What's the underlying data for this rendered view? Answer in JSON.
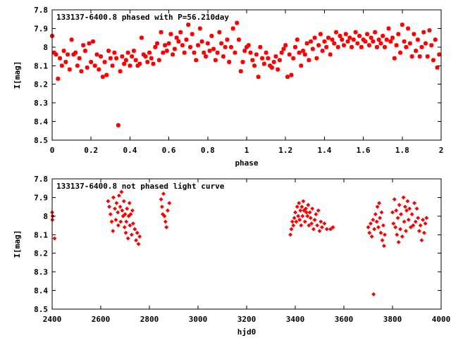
{
  "chart_data": [
    {
      "type": "scatter",
      "title": "133137-6400.8 phased with P=56.210day",
      "xlabel": "phase",
      "ylabel": "I[mag]",
      "xlim": [
        0,
        2
      ],
      "ylim": [
        8.5,
        7.8
      ],
      "y_inverted": true,
      "grid": false,
      "marker": "asterisk",
      "color": "#ff0000",
      "xticks": [
        "0",
        "0.2",
        "0.4",
        "0.6",
        "0.8",
        "1",
        "1.2",
        "1.4",
        "1.6",
        "1.8",
        "2"
      ],
      "yticks": [
        "7.8",
        "7.9",
        "8",
        "8.1",
        "8.2",
        "8.3",
        "8.4",
        "8.5"
      ],
      "points": [
        [
          0.0,
          7.94
        ],
        [
          0.01,
          8.03
        ],
        [
          0.02,
          8.04
        ],
        [
          0.03,
          8.17
        ],
        [
          0.04,
          8.06
        ],
        [
          0.05,
          8.1
        ],
        [
          0.06,
          8.02
        ],
        [
          0.07,
          8.08
        ],
        [
          0.08,
          8.04
        ],
        [
          0.09,
          8.12
        ],
        [
          0.1,
          7.96
        ],
        [
          0.11,
          8.04
        ],
        [
          0.12,
          8.03
        ],
        [
          0.13,
          8.1
        ],
        [
          0.14,
          8.06
        ],
        [
          0.15,
          8.13
        ],
        [
          0.16,
          7.99
        ],
        [
          0.17,
          8.02
        ],
        [
          0.18,
          8.11
        ],
        [
          0.19,
          7.98
        ],
        [
          0.2,
          8.08
        ],
        [
          0.21,
          7.97
        ],
        [
          0.22,
          8.1
        ],
        [
          0.23,
          8.04
        ],
        [
          0.24,
          8.12
        ],
        [
          0.25,
          8.05
        ],
        [
          0.26,
          8.16
        ],
        [
          0.27,
          8.08
        ],
        [
          0.28,
          8.15
        ],
        [
          0.29,
          8.02
        ],
        [
          0.3,
          8.06
        ],
        [
          0.31,
          8.1
        ],
        [
          0.32,
          8.03
        ],
        [
          0.33,
          8.06
        ],
        [
          0.34,
          8.42
        ],
        [
          0.35,
          8.13
        ],
        [
          0.36,
          8.05
        ],
        [
          0.37,
          8.09
        ],
        [
          0.38,
          8.07
        ],
        [
          0.39,
          8.03
        ],
        [
          0.4,
          8.1
        ],
        [
          0.41,
          8.05
        ],
        [
          0.42,
          8.02
        ],
        [
          0.43,
          8.07
        ],
        [
          0.44,
          8.1
        ],
        [
          0.45,
          8.09
        ],
        [
          0.46,
          7.95
        ],
        [
          0.47,
          8.04
        ],
        [
          0.48,
          8.05
        ],
        [
          0.49,
          8.08
        ],
        [
          0.5,
          8.03
        ],
        [
          0.51,
          8.06
        ],
        [
          0.52,
          8.09
        ],
        [
          0.53,
          8.0
        ],
        [
          0.54,
          7.98
        ],
        [
          0.55,
          8.07
        ],
        [
          0.56,
          7.92
        ],
        [
          0.57,
          8.03
        ],
        [
          0.58,
          7.99
        ],
        [
          0.59,
          8.02
        ],
        [
          0.6,
          7.98
        ],
        [
          0.61,
          7.93
        ],
        [
          0.62,
          8.04
        ],
        [
          0.63,
          8.01
        ],
        [
          0.64,
          7.95
        ],
        [
          0.65,
          7.97
        ],
        [
          0.66,
          7.92
        ],
        [
          0.67,
          7.99
        ],
        [
          0.68,
          8.03
        ],
        [
          0.69,
          7.96
        ],
        [
          0.7,
          7.88
        ],
        [
          0.71,
          8.0
        ],
        [
          0.72,
          7.93
        ],
        [
          0.73,
          8.03
        ],
        [
          0.74,
          8.07
        ],
        [
          0.75,
          7.99
        ],
        [
          0.76,
          7.9
        ],
        [
          0.77,
          7.97
        ],
        [
          0.78,
          8.03
        ],
        [
          0.79,
          8.05
        ],
        [
          0.8,
          7.98
        ],
        [
          0.81,
          8.02
        ],
        [
          0.82,
          7.94
        ],
        [
          0.83,
          8.01
        ],
        [
          0.84,
          8.07
        ],
        [
          0.85,
          8.03
        ],
        [
          0.86,
          7.92
        ],
        [
          0.87,
          7.98
        ],
        [
          0.88,
          8.05
        ],
        [
          0.89,
          8.0
        ],
        [
          0.9,
          7.96
        ],
        [
          0.91,
          8.08
        ],
        [
          0.92,
          8.0
        ],
        [
          0.93,
          7.9
        ],
        [
          0.94,
          8.03
        ],
        [
          0.95,
          7.87
        ],
        [
          0.96,
          7.96
        ],
        [
          0.97,
          8.13
        ],
        [
          0.98,
          8.08
        ],
        [
          0.99,
          8.02
        ],
        [
          1.0,
          8.0
        ],
        [
          1.01,
          7.99
        ],
        [
          1.02,
          8.03
        ],
        [
          1.03,
          8.07
        ],
        [
          1.04,
          8.1
        ],
        [
          1.05,
          8.04
        ],
        [
          1.06,
          8.16
        ],
        [
          1.07,
          8.0
        ],
        [
          1.08,
          8.06
        ],
        [
          1.09,
          8.09
        ],
        [
          1.1,
          8.03
        ],
        [
          1.11,
          8.06
        ],
        [
          1.12,
          8.1
        ],
        [
          1.13,
          8.11
        ],
        [
          1.14,
          8.08
        ],
        [
          1.15,
          8.05
        ],
        [
          1.16,
          8.12
        ],
        [
          1.17,
          8.07
        ],
        [
          1.18,
          8.03
        ],
        [
          1.19,
          8.01
        ],
        [
          1.2,
          7.99
        ],
        [
          1.21,
          8.16
        ],
        [
          1.22,
          8.04
        ],
        [
          1.23,
          8.15
        ],
        [
          1.24,
          8.06
        ],
        [
          1.25,
          8.0
        ],
        [
          1.26,
          7.96
        ],
        [
          1.27,
          8.03
        ],
        [
          1.28,
          8.1
        ],
        [
          1.29,
          8.02
        ],
        [
          1.3,
          8.04
        ],
        [
          1.31,
          7.98
        ],
        [
          1.32,
          8.07
        ],
        [
          1.33,
          7.97
        ],
        [
          1.34,
          8.01
        ],
        [
          1.35,
          7.95
        ],
        [
          1.36,
          8.06
        ],
        [
          1.37,
          7.99
        ],
        [
          1.38,
          7.93
        ],
        [
          1.39,
          8.02
        ],
        [
          1.4,
          7.97
        ],
        [
          1.41,
          8.0
        ],
        [
          1.42,
          7.95
        ],
        [
          1.43,
          8.04
        ],
        [
          1.44,
          7.96
        ],
        [
          1.45,
          7.98
        ],
        [
          1.46,
          7.92
        ],
        [
          1.47,
          8.0
        ],
        [
          1.48,
          7.94
        ],
        [
          1.49,
          7.96
        ],
        [
          1.5,
          7.99
        ],
        [
          1.51,
          7.93
        ],
        [
          1.52,
          7.97
        ],
        [
          1.53,
          7.95
        ],
        [
          1.54,
          8.0
        ],
        [
          1.55,
          7.96
        ],
        [
          1.56,
          7.92
        ],
        [
          1.57,
          7.98
        ],
        [
          1.58,
          7.94
        ],
        [
          1.59,
          8.0
        ],
        [
          1.6,
          7.96
        ],
        [
          1.61,
          7.97
        ],
        [
          1.62,
          7.93
        ],
        [
          1.63,
          7.99
        ],
        [
          1.64,
          7.95
        ],
        [
          1.65,
          7.97
        ],
        [
          1.66,
          7.92
        ],
        [
          1.67,
          8.0
        ],
        [
          1.68,
          7.96
        ],
        [
          1.69,
          7.98
        ],
        [
          1.7,
          7.94
        ],
        [
          1.71,
          8.0
        ],
        [
          1.72,
          7.96
        ],
        [
          1.73,
          7.9
        ],
        [
          1.74,
          7.97
        ],
        [
          1.75,
          7.95
        ],
        [
          1.76,
          8.06
        ],
        [
          1.77,
          7.99
        ],
        [
          1.78,
          7.93
        ],
        [
          1.79,
          8.03
        ],
        [
          1.8,
          7.88
        ],
        [
          1.81,
          7.97
        ],
        [
          1.82,
          8.0
        ],
        [
          1.83,
          7.9
        ],
        [
          1.84,
          7.98
        ],
        [
          1.85,
          8.05
        ],
        [
          1.86,
          7.93
        ],
        [
          1.87,
          8.02
        ],
        [
          1.88,
          7.96
        ],
        [
          1.89,
          8.05
        ],
        [
          1.9,
          8.0
        ],
        [
          1.91,
          7.92
        ],
        [
          1.92,
          7.98
        ],
        [
          1.93,
          8.05
        ],
        [
          1.94,
          7.91
        ],
        [
          1.95,
          7.99
        ],
        [
          1.96,
          8.07
        ],
        [
          1.97,
          7.96
        ],
        [
          1.98,
          8.11
        ],
        [
          1.99,
          8.04
        ]
      ]
    },
    {
      "type": "scatter",
      "title": "133137-6400.8 not phased light curve",
      "xlabel": "hjd0",
      "ylabel": "I[mag]",
      "xlim": [
        2400,
        4000
      ],
      "ylim": [
        8.5,
        7.8
      ],
      "y_inverted": true,
      "grid": false,
      "marker": "diamond",
      "color": "#ff0000",
      "xticks": [
        "2400",
        "2600",
        "2800",
        "3000",
        "3200",
        "3400",
        "3600",
        "3800",
        "4000"
      ],
      "yticks": [
        "7.8",
        "7.9",
        "8",
        "8.1",
        "8.2",
        "8.3",
        "8.4",
        "8.5"
      ],
      "points": [
        [
          2400,
          7.98
        ],
        [
          2401,
          8.02
        ],
        [
          2402,
          8.0
        ],
        [
          2410,
          8.12
        ],
        [
          2630,
          7.92
        ],
        [
          2635,
          7.95
        ],
        [
          2640,
          7.99
        ],
        [
          2645,
          8.03
        ],
        [
          2650,
          8.08
        ],
        [
          2652,
          7.9
        ],
        [
          2658,
          7.96
        ],
        [
          2662,
          8.02
        ],
        [
          2665,
          7.93
        ],
        [
          2670,
          7.98
        ],
        [
          2672,
          8.05
        ],
        [
          2675,
          7.89
        ],
        [
          2680,
          7.95
        ],
        [
          2682,
          8.03
        ],
        [
          2685,
          7.87
        ],
        [
          2688,
          7.97
        ],
        [
          2692,
          8.0
        ],
        [
          2695,
          7.92
        ],
        [
          2698,
          8.06
        ],
        [
          2700,
          7.99
        ],
        [
          2703,
          8.09
        ],
        [
          2705,
          8.03
        ],
        [
          2708,
          7.96
        ],
        [
          2712,
          8.12
        ],
        [
          2715,
          8.0
        ],
        [
          2718,
          7.93
        ],
        [
          2720,
          8.05
        ],
        [
          2723,
          7.99
        ],
        [
          2727,
          8.1
        ],
        [
          2730,
          7.97
        ],
        [
          2733,
          8.04
        ],
        [
          2740,
          8.07
        ],
        [
          2745,
          8.13
        ],
        [
          2750,
          8.09
        ],
        [
          2755,
          8.15
        ],
        [
          2760,
          8.11
        ],
        [
          2848,
          7.91
        ],
        [
          2852,
          7.95
        ],
        [
          2855,
          7.99
        ],
        [
          2858,
          7.88
        ],
        [
          2862,
          8.0
        ],
        [
          2866,
          8.03
        ],
        [
          2870,
          8.06
        ],
        [
          2875,
          7.97
        ],
        [
          2882,
          7.93
        ],
        [
          3380,
          8.1
        ],
        [
          3384,
          8.07
        ],
        [
          3388,
          8.03
        ],
        [
          3392,
          8.05
        ],
        [
          3396,
          8.01
        ],
        [
          3400,
          7.98
        ],
        [
          3404,
          8.03
        ],
        [
          3408,
          7.95
        ],
        [
          3412,
          8.0
        ],
        [
          3415,
          7.93
        ],
        [
          3418,
          8.02
        ],
        [
          3421,
          7.97
        ],
        [
          3424,
          8.05
        ],
        [
          3427,
          7.95
        ],
        [
          3430,
          8.0
        ],
        [
          3433,
          7.92
        ],
        [
          3436,
          7.97
        ],
        [
          3440,
          8.03
        ],
        [
          3443,
          7.96
        ],
        [
          3446,
          7.98
        ],
        [
          3450,
          8.0
        ],
        [
          3453,
          7.94
        ],
        [
          3456,
          8.05
        ],
        [
          3460,
          7.98
        ],
        [
          3463,
          8.01
        ],
        [
          3467,
          8.04
        ],
        [
          3470,
          7.96
        ],
        [
          3475,
          8.07
        ],
        [
          3480,
          8.02
        ],
        [
          3485,
          7.99
        ],
        [
          3490,
          8.05
        ],
        [
          3495,
          7.97
        ],
        [
          3500,
          8.08
        ],
        [
          3505,
          8.03
        ],
        [
          3510,
          8.06
        ],
        [
          3520,
          8.04
        ],
        [
          3530,
          8.07
        ],
        [
          3545,
          8.07
        ],
        [
          3555,
          8.06
        ],
        [
          3700,
          8.06
        ],
        [
          3705,
          8.09
        ],
        [
          3710,
          8.04
        ],
        [
          3715,
          8.11
        ],
        [
          3720,
          8.02
        ],
        [
          3722,
          8.42
        ],
        [
          3725,
          8.07
        ],
        [
          3730,
          7.99
        ],
        [
          3735,
          8.03
        ],
        [
          3738,
          7.95
        ],
        [
          3742,
          8.06
        ],
        [
          3745,
          7.93
        ],
        [
          3748,
          8.01
        ],
        [
          3752,
          8.09
        ],
        [
          3755,
          7.98
        ],
        [
          3758,
          8.13
        ],
        [
          3762,
          8.05
        ],
        [
          3765,
          8.16
        ],
        [
          3768,
          8.1
        ],
        [
          3800,
          7.98
        ],
        [
          3804,
          8.04
        ],
        [
          3808,
          7.91
        ],
        [
          3812,
          8.06
        ],
        [
          3815,
          7.97
        ],
        [
          3818,
          8.1
        ],
        [
          3822,
          8.01
        ],
        [
          3825,
          8.14
        ],
        [
          3828,
          7.94
        ],
        [
          3832,
          8.07
        ],
        [
          3835,
          7.99
        ],
        [
          3840,
          8.11
        ],
        [
          3845,
          7.9
        ],
        [
          3848,
          8.03
        ],
        [
          3852,
          7.95
        ],
        [
          3855,
          8.08
        ],
        [
          3858,
          7.97
        ],
        [
          3862,
          7.92
        ],
        [
          3866,
          8.02
        ],
        [
          3870,
          7.96
        ],
        [
          3875,
          8.06
        ],
        [
          3880,
          7.99
        ],
        [
          3885,
          8.05
        ],
        [
          3890,
          7.93
        ],
        [
          3895,
          8.03
        ],
        [
          3900,
          7.96
        ],
        [
          3905,
          8.01
        ],
        [
          3910,
          8.08
        ],
        [
          3915,
          8.05
        ],
        [
          3920,
          8.13
        ],
        [
          3925,
          8.02
        ],
        [
          3930,
          8.09
        ],
        [
          3935,
          8.04
        ],
        [
          3940,
          8.01
        ]
      ]
    }
  ]
}
